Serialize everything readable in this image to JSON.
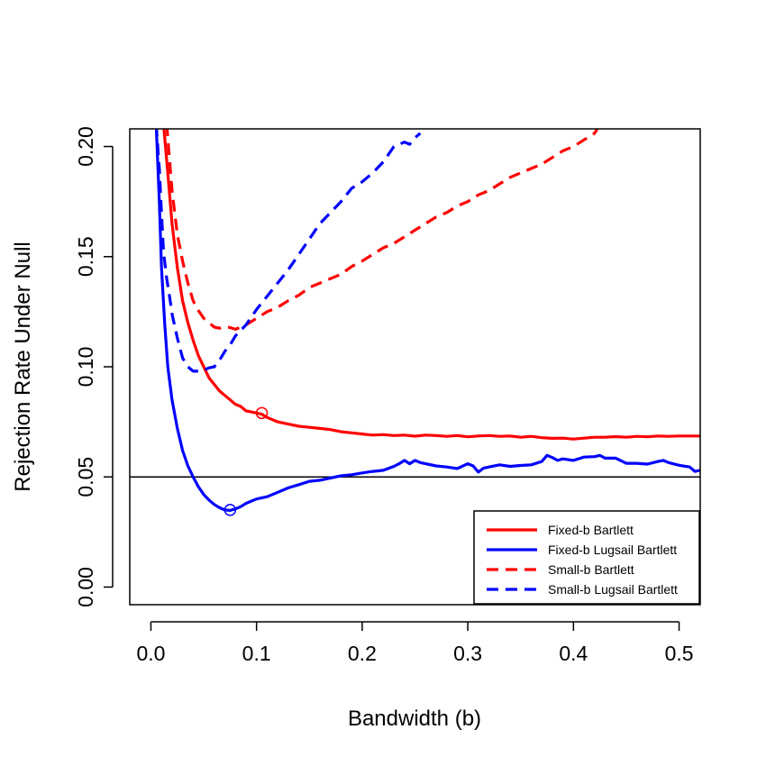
{
  "chart_data": {
    "type": "line",
    "title": "",
    "xlabel": "Bandwidth (b)",
    "ylabel": "Rejection Rate Under Null",
    "xlim": [
      -0.02,
      0.52
    ],
    "ylim": [
      -0.008,
      0.208
    ],
    "x_ticks": [
      0,
      0.1,
      0.2,
      0.3,
      0.4,
      0.5
    ],
    "x_tick_labels": [
      "0.0",
      "0.1",
      "0.2",
      "0.3",
      "0.4",
      "0.5"
    ],
    "y_ticks": [
      0,
      0.05,
      0.1,
      0.15,
      0.2
    ],
    "y_tick_labels": [
      "0.00",
      "0.05",
      "0.10",
      "0.15",
      "0.20"
    ],
    "reference_line": {
      "y": 0.05,
      "color": "#000000"
    },
    "grid": false,
    "legend_position": "bottom-right",
    "series": [
      {
        "name": "Fixed-b Bartlett",
        "color": "#ff0000",
        "style": "solid",
        "x": [
          0.012,
          0.016,
          0.02,
          0.025,
          0.03,
          0.035,
          0.04,
          0.045,
          0.05,
          0.055,
          0.06,
          0.065,
          0.07,
          0.075,
          0.08,
          0.085,
          0.09,
          0.095,
          0.1,
          0.105,
          0.11,
          0.12,
          0.13,
          0.14,
          0.15,
          0.16,
          0.17,
          0.18,
          0.19,
          0.2,
          0.21,
          0.22,
          0.23,
          0.24,
          0.25,
          0.26,
          0.27,
          0.28,
          0.29,
          0.3,
          0.31,
          0.32,
          0.33,
          0.34,
          0.35,
          0.36,
          0.37,
          0.38,
          0.39,
          0.4,
          0.41,
          0.42,
          0.43,
          0.44,
          0.45,
          0.46,
          0.47,
          0.48,
          0.49,
          0.5,
          0.51,
          0.52
        ],
        "y": [
          0.21,
          0.188,
          0.165,
          0.145,
          0.13,
          0.12,
          0.112,
          0.105,
          0.1,
          0.095,
          0.092,
          0.089,
          0.087,
          0.085,
          0.083,
          0.082,
          0.08,
          0.0795,
          0.079,
          0.0785,
          0.077,
          0.075,
          0.074,
          0.073,
          0.0725,
          0.072,
          0.0715,
          0.0705,
          0.07,
          0.0695,
          0.069,
          0.0692,
          0.0688,
          0.069,
          0.0685,
          0.069,
          0.0688,
          0.0684,
          0.0688,
          0.0682,
          0.0686,
          0.0688,
          0.0684,
          0.0686,
          0.068,
          0.0684,
          0.0678,
          0.0675,
          0.0676,
          0.0672,
          0.0676,
          0.068,
          0.068,
          0.0683,
          0.068,
          0.0684,
          0.0682,
          0.0686,
          0.0684,
          0.0686,
          0.0686,
          0.0686
        ]
      },
      {
        "name": "Fixed-b Lugsail Bartlett",
        "color": "#0000ff",
        "style": "solid",
        "x": [
          0.005,
          0.008,
          0.01,
          0.013,
          0.016,
          0.02,
          0.025,
          0.03,
          0.035,
          0.04,
          0.045,
          0.05,
          0.055,
          0.06,
          0.065,
          0.07,
          0.075,
          0.08,
          0.085,
          0.09,
          0.095,
          0.1,
          0.11,
          0.12,
          0.13,
          0.14,
          0.15,
          0.16,
          0.17,
          0.18,
          0.19,
          0.2,
          0.21,
          0.22,
          0.23,
          0.235,
          0.24,
          0.245,
          0.25,
          0.255,
          0.26,
          0.27,
          0.28,
          0.29,
          0.3,
          0.305,
          0.31,
          0.315,
          0.32,
          0.33,
          0.34,
          0.35,
          0.36,
          0.37,
          0.375,
          0.38,
          0.385,
          0.39,
          0.4,
          0.41,
          0.42,
          0.425,
          0.43,
          0.44,
          0.45,
          0.46,
          0.47,
          0.48,
          0.485,
          0.49,
          0.5,
          0.51,
          0.515,
          0.52
        ],
        "y": [
          0.21,
          0.175,
          0.145,
          0.12,
          0.1,
          0.085,
          0.072,
          0.062,
          0.055,
          0.05,
          0.0455,
          0.042,
          0.0395,
          0.0375,
          0.036,
          0.035,
          0.0348,
          0.0355,
          0.0365,
          0.038,
          0.039,
          0.04,
          0.041,
          0.043,
          0.045,
          0.0465,
          0.048,
          0.0485,
          0.0495,
          0.0505,
          0.051,
          0.0518,
          0.0525,
          0.053,
          0.0548,
          0.056,
          0.0575,
          0.056,
          0.0575,
          0.0565,
          0.056,
          0.055,
          0.0545,
          0.0538,
          0.056,
          0.055,
          0.0522,
          0.054,
          0.0545,
          0.0555,
          0.0548,
          0.0552,
          0.0555,
          0.057,
          0.0598,
          0.0588,
          0.0575,
          0.0582,
          0.0575,
          0.059,
          0.0592,
          0.0598,
          0.0585,
          0.0585,
          0.0562,
          0.0562,
          0.0558,
          0.057,
          0.0575,
          0.0565,
          0.0553,
          0.0545,
          0.0525,
          0.053
        ]
      },
      {
        "name": "Small-b Bartlett",
        "color": "#ff0000",
        "style": "dashed",
        "x": [
          0.015,
          0.02,
          0.025,
          0.03,
          0.035,
          0.04,
          0.045,
          0.05,
          0.055,
          0.06,
          0.065,
          0.07,
          0.075,
          0.08,
          0.085,
          0.09,
          0.1,
          0.11,
          0.12,
          0.13,
          0.14,
          0.15,
          0.16,
          0.17,
          0.18,
          0.19,
          0.2,
          0.21,
          0.22,
          0.23,
          0.24,
          0.25,
          0.26,
          0.27,
          0.28,
          0.29,
          0.3,
          0.31,
          0.32,
          0.33,
          0.34,
          0.35,
          0.36,
          0.37,
          0.38,
          0.39,
          0.4,
          0.41,
          0.42,
          0.425
        ],
        "y": [
          0.21,
          0.18,
          0.16,
          0.148,
          0.138,
          0.13,
          0.1255,
          0.122,
          0.12,
          0.118,
          0.1175,
          0.1182,
          0.1178,
          0.117,
          0.118,
          0.119,
          0.122,
          0.125,
          0.127,
          0.13,
          0.1325,
          0.136,
          0.138,
          0.14,
          0.142,
          0.1455,
          0.148,
          0.151,
          0.154,
          0.156,
          0.159,
          0.162,
          0.165,
          0.168,
          0.17,
          0.173,
          0.175,
          0.178,
          0.18,
          0.183,
          0.186,
          0.188,
          0.19,
          0.192,
          0.195,
          0.198,
          0.2,
          0.203,
          0.206,
          0.21
        ]
      },
      {
        "name": "Small-b Lugsail Bartlett",
        "color": "#0000ff",
        "style": "dashed",
        "x": [
          0.005,
          0.008,
          0.01,
          0.012,
          0.015,
          0.018,
          0.02,
          0.025,
          0.03,
          0.035,
          0.04,
          0.045,
          0.05,
          0.055,
          0.06,
          0.065,
          0.07,
          0.075,
          0.08,
          0.09,
          0.1,
          0.11,
          0.12,
          0.13,
          0.14,
          0.15,
          0.16,
          0.17,
          0.18,
          0.19,
          0.2,
          0.21,
          0.22,
          0.23,
          0.24,
          0.245,
          0.25,
          0.255
        ],
        "y": [
          0.21,
          0.19,
          0.17,
          0.152,
          0.14,
          0.131,
          0.124,
          0.113,
          0.104,
          0.1,
          0.098,
          0.098,
          0.0985,
          0.0995,
          0.1,
          0.103,
          0.107,
          0.11,
          0.114,
          0.119,
          0.126,
          0.132,
          0.138,
          0.144,
          0.151,
          0.158,
          0.165,
          0.17,
          0.175,
          0.181,
          0.184,
          0.188,
          0.193,
          0.2,
          0.202,
          0.201,
          0.204,
          0.206
        ]
      }
    ],
    "markers": [
      {
        "x": 0.105,
        "y": 0.079,
        "color": "#ff0000",
        "shape": "open-circle"
      },
      {
        "x": 0.075,
        "y": 0.035,
        "color": "#0000ff",
        "shape": "open-circle"
      }
    ]
  }
}
